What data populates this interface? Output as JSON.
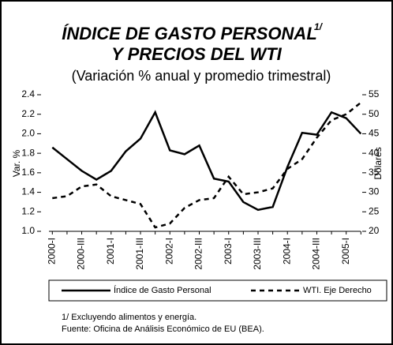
{
  "chart_data": {
    "type": "line",
    "title": "ÍNDICE DE GASTO PERSONAL",
    "title_note": "1/",
    "title_line2": "Y PRECIOS DEL WTI",
    "subtitle": "(Variación % anual y promedio trimestral)",
    "y_label": "Var. %",
    "y2_label": "Dólares",
    "categories": [
      "2000-I",
      null,
      "2000-III",
      null,
      "2001-I",
      null,
      "2001-III",
      null,
      "2002-I",
      null,
      "2002-III",
      null,
      "2003-I",
      null,
      "2003-III",
      null,
      "2004-I",
      null,
      "2004-III",
      null,
      "2005-I",
      null
    ],
    "series": [
      {
        "name": "Índice de Gasto Personal",
        "color": "#000000",
        "line_style": "solid",
        "values": [
          1.86,
          1.74,
          1.62,
          1.53,
          1.62,
          1.82,
          1.95,
          2.22,
          1.83,
          1.79,
          1.88,
          1.54,
          1.51,
          1.3,
          1.22,
          1.25,
          1.66,
          2.01,
          1.99,
          2.22,
          2.16,
          2.0
        ]
      },
      {
        "name": "WTI. Eje Derecho",
        "color": "#000000",
        "line_style": "dashed",
        "axis": "y2",
        "values": [
          28.5,
          29,
          31.5,
          32,
          29,
          28,
          27,
          21,
          22,
          26,
          28,
          28.5,
          34,
          29.5,
          30,
          31,
          36,
          38.5,
          44,
          48.5,
          50,
          53
        ]
      }
    ],
    "ylim": [
      1.0,
      2.4
    ],
    "yticks": [
      {
        "value": 1,
        "label": "1.0"
      },
      1.2,
      1.4,
      1.6,
      1.8,
      {
        "value": 2,
        "label": "2.0"
      },
      2.2,
      2.4
    ],
    "y2lim": [
      20,
      55
    ],
    "y2ticks": [
      20,
      25,
      30,
      35,
      40,
      45,
      50,
      55
    ],
    "legend": "bottom",
    "footnotes": [
      "1/ Excluyendo alimentos y energía.",
      "Fuente: Oficina de Análisis Económico de EU (BEA)."
    ]
  }
}
